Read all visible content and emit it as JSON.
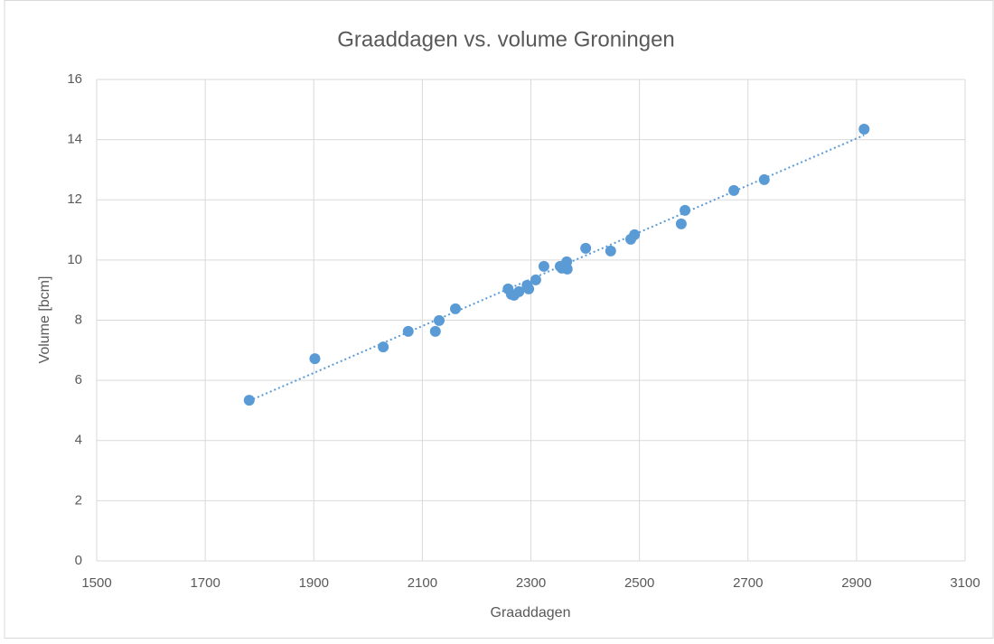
{
  "chart_data": {
    "type": "scatter",
    "title": "Graaddagen vs. volume Groningen",
    "xlabel": "Graaddagen",
    "ylabel": "Volume [bcm]",
    "series": [
      {
        "color": "#5b9bd5",
        "x": [
          1781,
          1902,
          2028,
          2074,
          2124,
          2131,
          2161,
          2258,
          2264,
          2269,
          2278,
          2293,
          2296,
          2309,
          2324,
          2354,
          2357,
          2366,
          2367,
          2401,
          2447,
          2484,
          2491,
          2577,
          2584,
          2674,
          2730,
          2914
        ],
        "values": [
          5.34,
          6.72,
          7.11,
          7.63,
          7.63,
          7.99,
          8.38,
          9.04,
          8.86,
          8.83,
          8.95,
          9.16,
          9.04,
          9.34,
          9.79,
          9.79,
          9.73,
          9.94,
          9.7,
          10.39,
          10.3,
          10.69,
          10.84,
          11.2,
          11.65,
          12.31,
          12.67,
          14.35
        ]
      }
    ],
    "trendline": {
      "color": "#5b9bd5",
      "x": [
        1781,
        2914
      ],
      "values": [
        5.32,
        14.15
      ]
    },
    "xlim": [
      1500,
      3100
    ],
    "xticks": [
      1500,
      1700,
      1900,
      2100,
      2300,
      2500,
      2700,
      2900,
      3100
    ],
    "ylim": [
      0,
      16
    ],
    "yticks": [
      0,
      2,
      4,
      6,
      8,
      10,
      12,
      14,
      16
    ],
    "grid": true
  }
}
